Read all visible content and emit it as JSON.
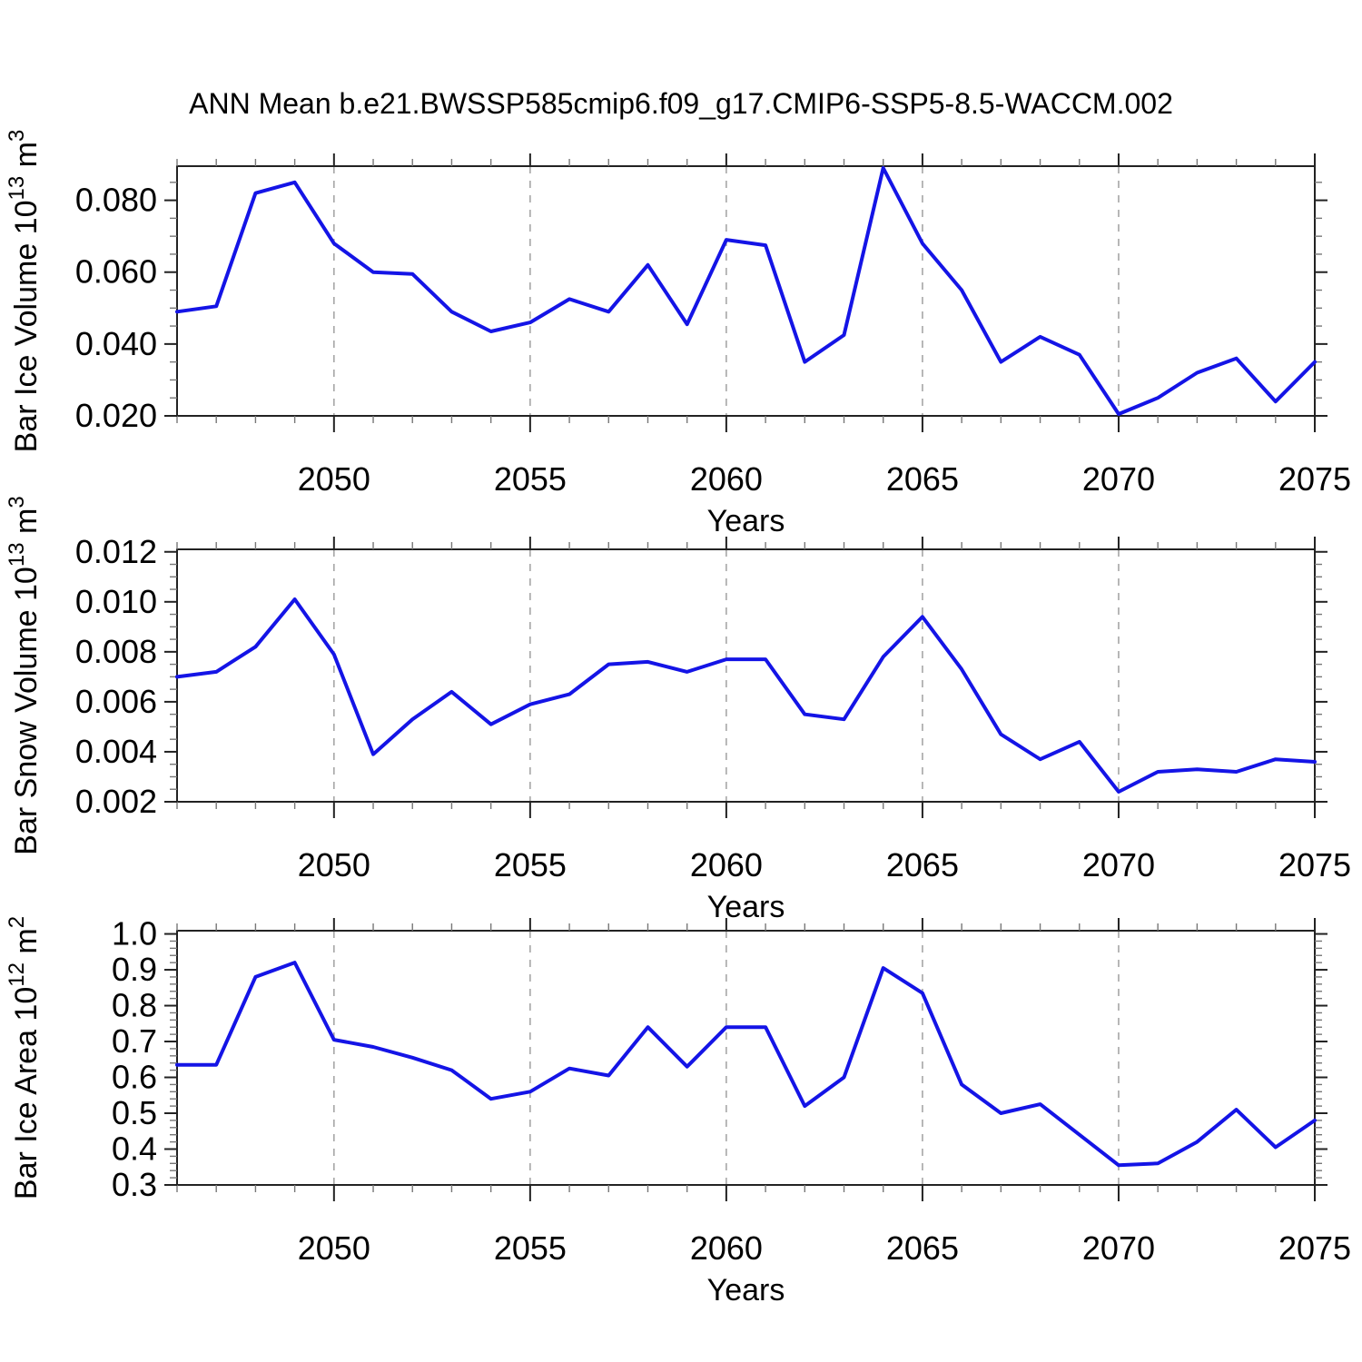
{
  "title": "ANN Mean b.e21.BWSSP585cmip6.f09_g17.CMIP6-SSP5-8.5-WACCM.002",
  "colors": {
    "line": "#1414e6",
    "axis": "#222222",
    "minor_tick": "#777777",
    "grid": "#a0a0a0",
    "text": "#000000",
    "background": "#ffffff"
  },
  "x_axis": {
    "label": "Years",
    "min": 2046,
    "max": 2075,
    "major_ticks": [
      2050,
      2055,
      2060,
      2065,
      2070,
      2075
    ],
    "major_tick_labels": [
      "2050",
      "2055",
      "2060",
      "2065",
      "2070",
      "2075"
    ],
    "minor_step_years": 1,
    "gridline_years": [
      2050,
      2055,
      2060,
      2065,
      2070
    ]
  },
  "chart_data": [
    {
      "type": "line",
      "name": "bar-ice-volume",
      "title": "ANN Mean b.e21.BWSSP585cmip6.f09_g17.CMIP6-SSP5-8.5-WACCM.002",
      "ylabel_parts": [
        [
          "Bar Ice Volume 10",
          false
        ],
        [
          "13",
          true
        ],
        [
          " m",
          false
        ],
        [
          "3",
          true
        ]
      ],
      "xlabel": "Years",
      "x": [
        2046,
        2047,
        2048,
        2049,
        2050,
        2051,
        2052,
        2053,
        2054,
        2055,
        2056,
        2057,
        2058,
        2059,
        2060,
        2061,
        2062,
        2063,
        2064,
        2065,
        2066,
        2067,
        2068,
        2069,
        2070,
        2071,
        2072,
        2073,
        2074,
        2075
      ],
      "values": [
        0.049,
        0.0505,
        0.082,
        0.085,
        0.068,
        0.06,
        0.0595,
        0.049,
        0.0435,
        0.046,
        0.0525,
        0.049,
        0.062,
        0.0455,
        0.069,
        0.0675,
        0.035,
        0.0425,
        0.089,
        0.068,
        0.055,
        0.035,
        0.042,
        0.037,
        0.0205,
        0.025,
        0.032,
        0.036,
        0.024,
        0.035
      ],
      "ylim": [
        0.02,
        0.0895
      ],
      "ytick_values": [
        0.02,
        0.04,
        0.06,
        0.08
      ],
      "ytick_labels": [
        "0.020",
        "0.040",
        "0.060",
        "0.080"
      ],
      "yminor_step": 0.005,
      "grid": "vertical-dashed",
      "legend": null
    },
    {
      "type": "line",
      "name": "bar-snow-volume",
      "ylabel_parts": [
        [
          "Bar Snow Volume 10",
          false
        ],
        [
          "13",
          true
        ],
        [
          " m",
          false
        ],
        [
          "3",
          true
        ]
      ],
      "xlabel": "Years",
      "x": [
        2046,
        2047,
        2048,
        2049,
        2050,
        2051,
        2052,
        2053,
        2054,
        2055,
        2056,
        2057,
        2058,
        2059,
        2060,
        2061,
        2062,
        2063,
        2064,
        2065,
        2066,
        2067,
        2068,
        2069,
        2070,
        2071,
        2072,
        2073,
        2074,
        2075
      ],
      "values": [
        0.007,
        0.0072,
        0.0082,
        0.0101,
        0.0079,
        0.0039,
        0.0053,
        0.0064,
        0.0051,
        0.0059,
        0.0063,
        0.0075,
        0.0076,
        0.0072,
        0.0077,
        0.0077,
        0.0055,
        0.0053,
        0.0078,
        0.0094,
        0.0073,
        0.0047,
        0.0037,
        0.0044,
        0.0024,
        0.0032,
        0.0033,
        0.0032,
        0.0037,
        0.0036
      ],
      "ylim": [
        0.002,
        0.0121
      ],
      "ytick_values": [
        0.002,
        0.004,
        0.006,
        0.008,
        0.01,
        0.012
      ],
      "ytick_labels": [
        "0.002",
        "0.004",
        "0.006",
        "0.008",
        "0.010",
        "0.012"
      ],
      "yminor_step": 0.0005,
      "grid": "vertical-dashed",
      "legend": null
    },
    {
      "type": "line",
      "name": "bar-ice-area",
      "ylabel_parts": [
        [
          "Bar Ice Area 10",
          false
        ],
        [
          "12",
          true
        ],
        [
          " m",
          false
        ],
        [
          "2",
          true
        ]
      ],
      "xlabel": "Years",
      "x": [
        2046,
        2047,
        2048,
        2049,
        2050,
        2051,
        2052,
        2053,
        2054,
        2055,
        2056,
        2057,
        2058,
        2059,
        2060,
        2061,
        2062,
        2063,
        2064,
        2065,
        2066,
        2067,
        2068,
        2069,
        2070,
        2071,
        2072,
        2073,
        2074,
        2075
      ],
      "values": [
        0.635,
        0.635,
        0.88,
        0.92,
        0.705,
        0.685,
        0.655,
        0.62,
        0.54,
        0.56,
        0.625,
        0.605,
        0.74,
        0.63,
        0.74,
        0.74,
        0.52,
        0.6,
        0.905,
        0.835,
        0.58,
        0.5,
        0.525,
        0.44,
        0.355,
        0.36,
        0.42,
        0.51,
        0.405,
        0.48
      ],
      "ylim": [
        0.3,
        1.009
      ],
      "ytick_values": [
        0.3,
        0.4,
        0.5,
        0.6,
        0.7,
        0.8,
        0.9,
        1.0
      ],
      "ytick_labels": [
        "0.3",
        "0.4",
        "0.5",
        "0.6",
        "0.7",
        "0.8",
        "0.9",
        "1.0"
      ],
      "yminor_step": 0.02,
      "grid": "vertical-dashed",
      "legend": null
    }
  ]
}
